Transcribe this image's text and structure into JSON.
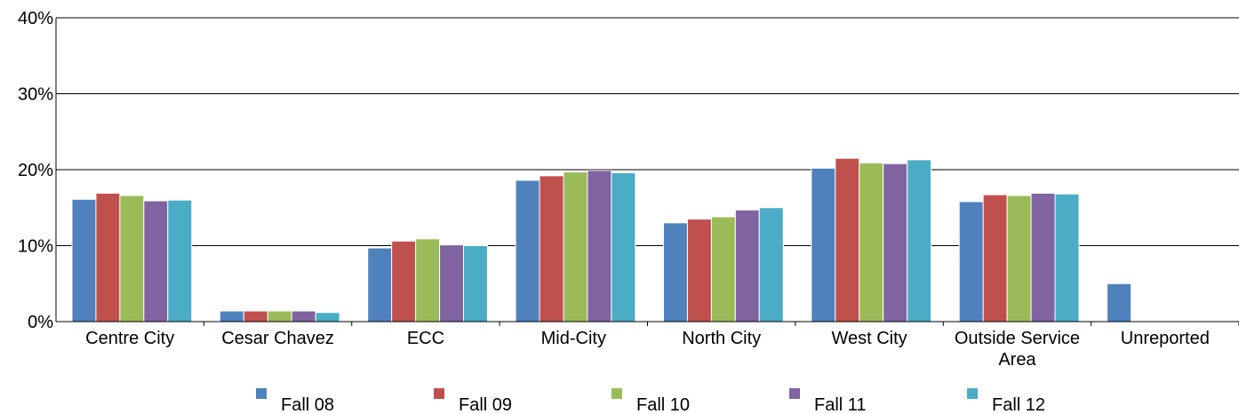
{
  "chart_data": {
    "type": "bar",
    "categories": [
      "Centre City",
      "Cesar Chavez",
      "ECC",
      "Mid-City",
      "North City",
      "West City",
      "Outside Service Area",
      "Unreported"
    ],
    "series": [
      {
        "name": "Fall 08",
        "color": "#4f81bd",
        "values": [
          16.1,
          1.4,
          9.7,
          18.6,
          13.0,
          20.2,
          15.8,
          5.0
        ]
      },
      {
        "name": "Fall 09",
        "color": "#c0504d",
        "values": [
          16.9,
          1.4,
          10.6,
          19.2,
          13.5,
          21.5,
          16.7,
          0.1
        ]
      },
      {
        "name": "Fall 10",
        "color": "#9bbb59",
        "values": [
          16.6,
          1.4,
          10.9,
          19.7,
          13.8,
          20.9,
          16.6,
          0.1
        ]
      },
      {
        "name": "Fall 11",
        "color": "#8064a2",
        "values": [
          15.9,
          1.4,
          10.1,
          19.9,
          14.7,
          20.8,
          16.9,
          0.1
        ]
      },
      {
        "name": "Fall 12",
        "color": "#4bacc6",
        "values": [
          16.0,
          1.2,
          10.0,
          19.6,
          15.0,
          21.3,
          16.8,
          0.1
        ]
      }
    ],
    "ylim": [
      0,
      40
    ],
    "yticks": [
      {
        "value": 0,
        "label": "0%"
      },
      {
        "value": 10,
        "label": "10%"
      },
      {
        "value": 20,
        "label": "20%"
      },
      {
        "value": 30,
        "label": "30%"
      },
      {
        "value": 40,
        "label": "40%"
      }
    ],
    "grid": true,
    "legend": "bottom"
  }
}
